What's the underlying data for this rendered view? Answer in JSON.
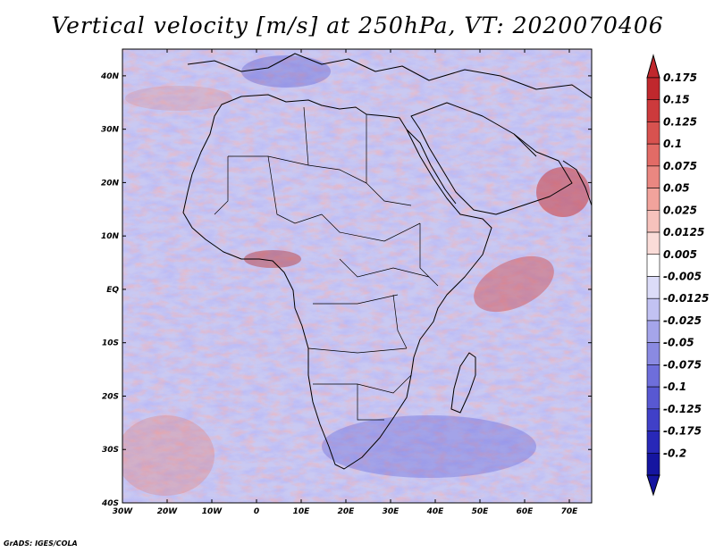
{
  "title": "Vertical velocity [m/s] at 250hPa, VT: 2020070406",
  "credit": "GrADS: IGES/COLA",
  "map": {
    "lon_range": [
      -30,
      75
    ],
    "lat_range": [
      -40,
      45
    ],
    "lat_ticks": [
      {
        "value": 40,
        "label": "40N"
      },
      {
        "value": 30,
        "label": "30N"
      },
      {
        "value": 20,
        "label": "20N"
      },
      {
        "value": 10,
        "label": "10N"
      },
      {
        "value": 0,
        "label": "EQ"
      },
      {
        "value": -10,
        "label": "10S"
      },
      {
        "value": -20,
        "label": "20S"
      },
      {
        "value": -30,
        "label": "30S"
      },
      {
        "value": -40,
        "label": "40S"
      }
    ],
    "lon_ticks": [
      {
        "value": -30,
        "label": "30W"
      },
      {
        "value": -20,
        "label": "20W"
      },
      {
        "value": -10,
        "label": "10W"
      },
      {
        "value": 0,
        "label": "0"
      },
      {
        "value": 10,
        "label": "10E"
      },
      {
        "value": 20,
        "label": "20E"
      },
      {
        "value": 30,
        "label": "30E"
      },
      {
        "value": 40,
        "label": "40E"
      },
      {
        "value": 50,
        "label": "50E"
      },
      {
        "value": 60,
        "label": "60E"
      },
      {
        "value": 70,
        "label": "70E"
      }
    ]
  },
  "colorbar": {
    "levels": [
      "0.175",
      "0.15",
      "0.125",
      "0.1",
      "0.075",
      "0.05",
      "0.025",
      "0.0125",
      "0.005",
      "-0.005",
      "-0.0125",
      "-0.025",
      "-0.05",
      "-0.075",
      "-0.1",
      "-0.125",
      "-0.175",
      "-0.2"
    ],
    "colors": [
      "#c0282d",
      "#cc3a3c",
      "#d8524f",
      "#e26b66",
      "#ea8781",
      "#f1a39c",
      "#f6c2bc",
      "#fadcd8",
      "#ffffff",
      "#dcdcf8",
      "#c2c2f2",
      "#a5a5ea",
      "#8a8ae2",
      "#6e6edb",
      "#5858d2",
      "#4040c8",
      "#2828b8",
      "#1515a0"
    ]
  }
}
